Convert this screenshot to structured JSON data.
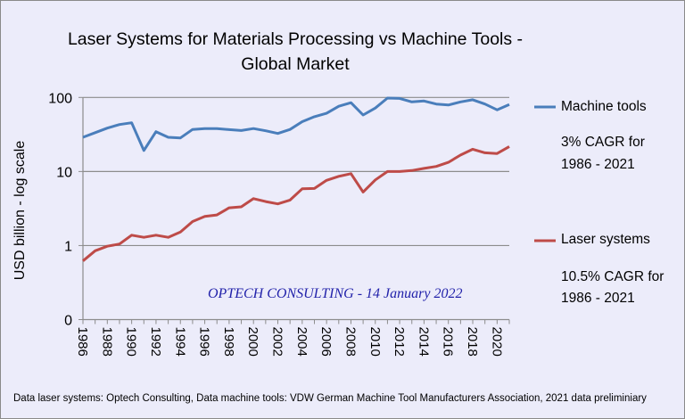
{
  "chart_data": {
    "type": "line",
    "title_line1": "Laser Systems for Materials Processing vs Machine Tools -",
    "title_line2": "Global Market",
    "ylabel": "USD billion - log scale",
    "yscale": "log",
    "ylim": [
      0.1,
      100
    ],
    "y_ticks": [
      {
        "value": 0.1,
        "label": "0"
      },
      {
        "value": 1,
        "label": "1"
      },
      {
        "value": 10,
        "label": "10"
      },
      {
        "value": 100,
        "label": "100"
      }
    ],
    "grid": true,
    "x": [
      1986,
      1987,
      1988,
      1989,
      1990,
      1991,
      1992,
      1993,
      1994,
      1995,
      1996,
      1997,
      1998,
      1999,
      2000,
      2001,
      2002,
      2003,
      2004,
      2005,
      2006,
      2007,
      2008,
      2009,
      2010,
      2011,
      2012,
      2013,
      2014,
      2015,
      2016,
      2017,
      2018,
      2019,
      2020,
      2021
    ],
    "x_tick_labels": [
      "1986",
      "1988",
      "1990",
      "1992",
      "1994",
      "1996",
      "1998",
      "2000",
      "2002",
      "2004",
      "2006",
      "2008",
      "2010",
      "2012",
      "2014",
      "2016",
      "2018",
      "2020"
    ],
    "legend_placement": "right",
    "series": [
      {
        "name": "Machine tools",
        "color": "#4a7ebb",
        "note_line1": "3% CAGR for",
        "note_line2": "1986 - 2021",
        "values": [
          29,
          33.5,
          38.5,
          43,
          45.5,
          19.2,
          34.5,
          29,
          28.4,
          37,
          38,
          38,
          36.8,
          35.8,
          38,
          35.5,
          32.6,
          37,
          47,
          55,
          61,
          76,
          85,
          58,
          72,
          98,
          97,
          87,
          89.5,
          81.5,
          79,
          87,
          93,
          81.5,
          68,
          80
        ]
      },
      {
        "name": "Laser systems",
        "color": "#be4b48",
        "note_line1": "10.5% CAGR for",
        "note_line2": "1986 - 2021",
        "values": [
          0.62,
          0.85,
          0.98,
          1.05,
          1.38,
          1.29,
          1.38,
          1.29,
          1.52,
          2.11,
          2.47,
          2.59,
          3.23,
          3.33,
          4.3,
          3.93,
          3.65,
          4.12,
          5.84,
          5.9,
          7.6,
          8.6,
          9.36,
          5.28,
          7.7,
          10,
          10,
          10.3,
          11,
          11.7,
          13.3,
          16.7,
          20,
          17.9,
          17.5,
          21.7
        ]
      }
    ],
    "annotation": "OPTECH CONSULTING  - 14 January 2022",
    "footer": "Data laser systems: Optech Consulting, Data machine tools: VDW German Machine Tool Manufacturers Association, 2021 data preliminiary"
  }
}
